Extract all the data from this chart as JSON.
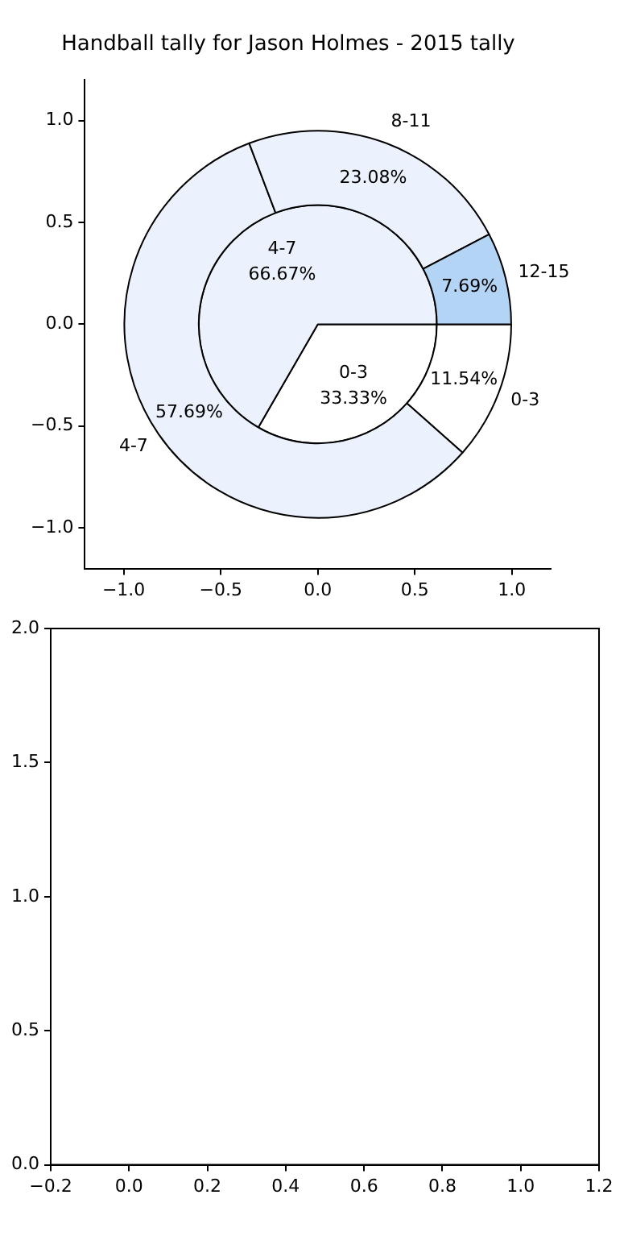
{
  "chart_data": [
    {
      "type": "scatter",
      "title": "Handball tally for Jason Holmes - 2015 tally",
      "grid": false,
      "xlim": [
        -1.2,
        1.2
      ],
      "ylim": [
        -1.2,
        1.2
      ],
      "xticks": [
        {
          "value": -1,
          "label": "−1.0"
        },
        {
          "value": -0.5,
          "label": "−0.5"
        },
        {
          "value": 0,
          "label": "0.0"
        },
        {
          "value": 0.5,
          "label": "0.5"
        },
        {
          "value": 1,
          "label": "1.0"
        }
      ],
      "yticks": [
        {
          "value": -1,
          "label": "−1.0"
        },
        {
          "value": -0.5,
          "label": "−0.5"
        },
        {
          "value": 0,
          "label": "0.0"
        },
        {
          "value": 0.5,
          "label": "0.5"
        },
        {
          "value": 1,
          "label": "1.0"
        }
      ]
    },
    {
      "type": "pie",
      "categories": [
        "0-3",
        "4-7",
        "8-11",
        "12-15"
      ],
      "series": [
        {
          "values": [
            11.54,
            57.69,
            23.08,
            7.69
          ],
          "value_labels": [
            "11.54%",
            "57.69%",
            "23.08%",
            "7.69%"
          ],
          "colors": [
            "#ffffff",
            "#ebf1fd",
            "#ebf1fd",
            "#b3d4f5"
          ]
        },
        {
          "values": [
            33.33,
            66.67,
            null,
            null
          ],
          "value_labels": [
            "33.33%",
            "66.67%",
            null,
            null
          ],
          "colors": [
            "#ffffff",
            "#ebf1fd",
            "#ebf1fd",
            "#b3d4f5"
          ]
        }
      ]
    },
    {
      "type": "scatter",
      "grid": false,
      "xlim": [
        -0.2,
        1.2
      ],
      "xticks": [
        {
          "value": -0.2,
          "label": "−0.2"
        },
        {
          "value": 0,
          "label": "0.0"
        },
        {
          "value": 0.2,
          "label": "0.2"
        },
        {
          "value": 0.4,
          "label": "0.4"
        },
        {
          "value": 0.6,
          "label": "0.6"
        },
        {
          "value": 0.8,
          "label": "0.8"
        },
        {
          "value": 1,
          "label": "1.0"
        },
        {
          "value": 1.2,
          "label": "1.2"
        }
      ],
      "ylim": [
        0,
        2
      ],
      "yticks": [
        {
          "value": 0,
          "label": "0.0"
        },
        {
          "value": 0.5,
          "label": "0.5"
        },
        {
          "value": 1,
          "label": "1.0"
        },
        {
          "value": 1.5,
          "label": "1.5"
        },
        {
          "value": 2,
          "label": "2.0"
        }
      ]
    }
  ]
}
